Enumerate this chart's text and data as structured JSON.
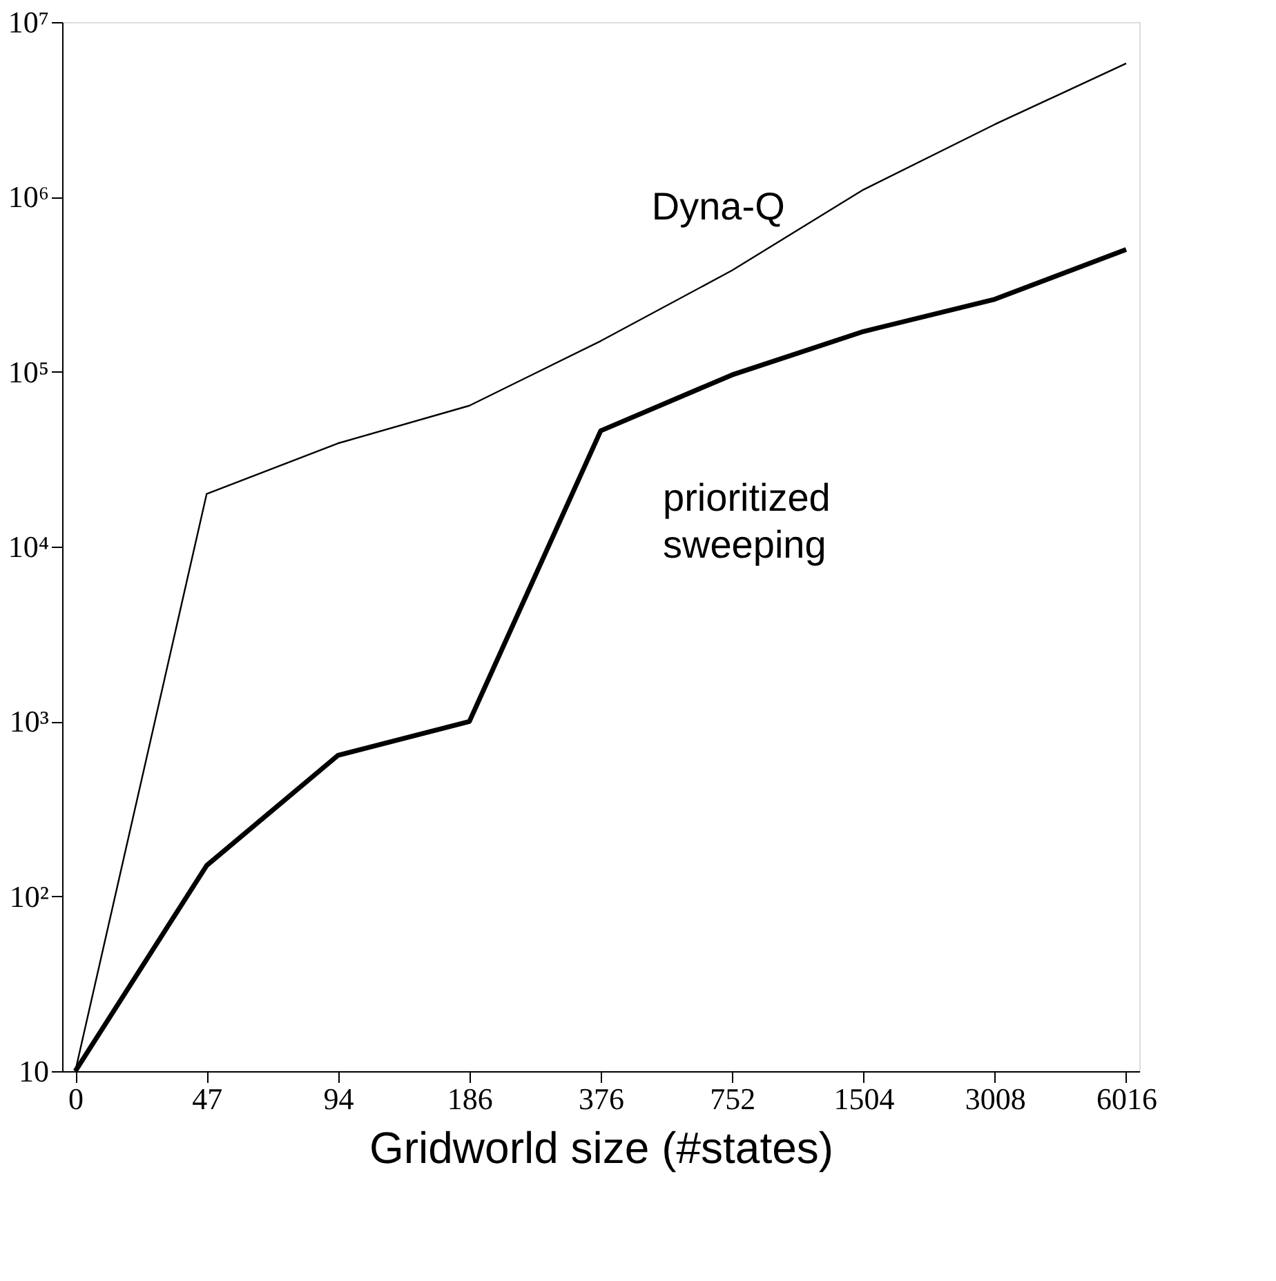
{
  "chart_data": {
    "type": "line",
    "xlabel": "Gridworld size (#states)",
    "categories": [
      "0",
      "47",
      "94",
      "186",
      "376",
      "752",
      "1504",
      "3008",
      "6016"
    ],
    "series": [
      {
        "name": "Dyna-Q",
        "color": "#000000",
        "values": [
          10,
          20000,
          39000,
          64000,
          150000,
          380000,
          1100000,
          2600000,
          5800000
        ]
      },
      {
        "name": "prioritized sweeping",
        "color": "#000000",
        "values": [
          10,
          150,
          640,
          1000,
          46000,
          96000,
          170000,
          260000,
          500000
        ]
      }
    ],
    "log": "y",
    "ylim": [
      10,
      10000000
    ],
    "yticks": [
      10,
      {
        "value": 100,
        "label": "10²"
      },
      {
        "value": 1000,
        "label": "10³"
      },
      {
        "value": 10000,
        "label": "10⁴"
      },
      {
        "value": 100000,
        "label": "10⁵"
      },
      {
        "value": 1000000,
        "label": "10⁶"
      },
      {
        "value": 10000000,
        "label": "10⁷"
      }
    ],
    "grid": false,
    "legend": false
  }
}
